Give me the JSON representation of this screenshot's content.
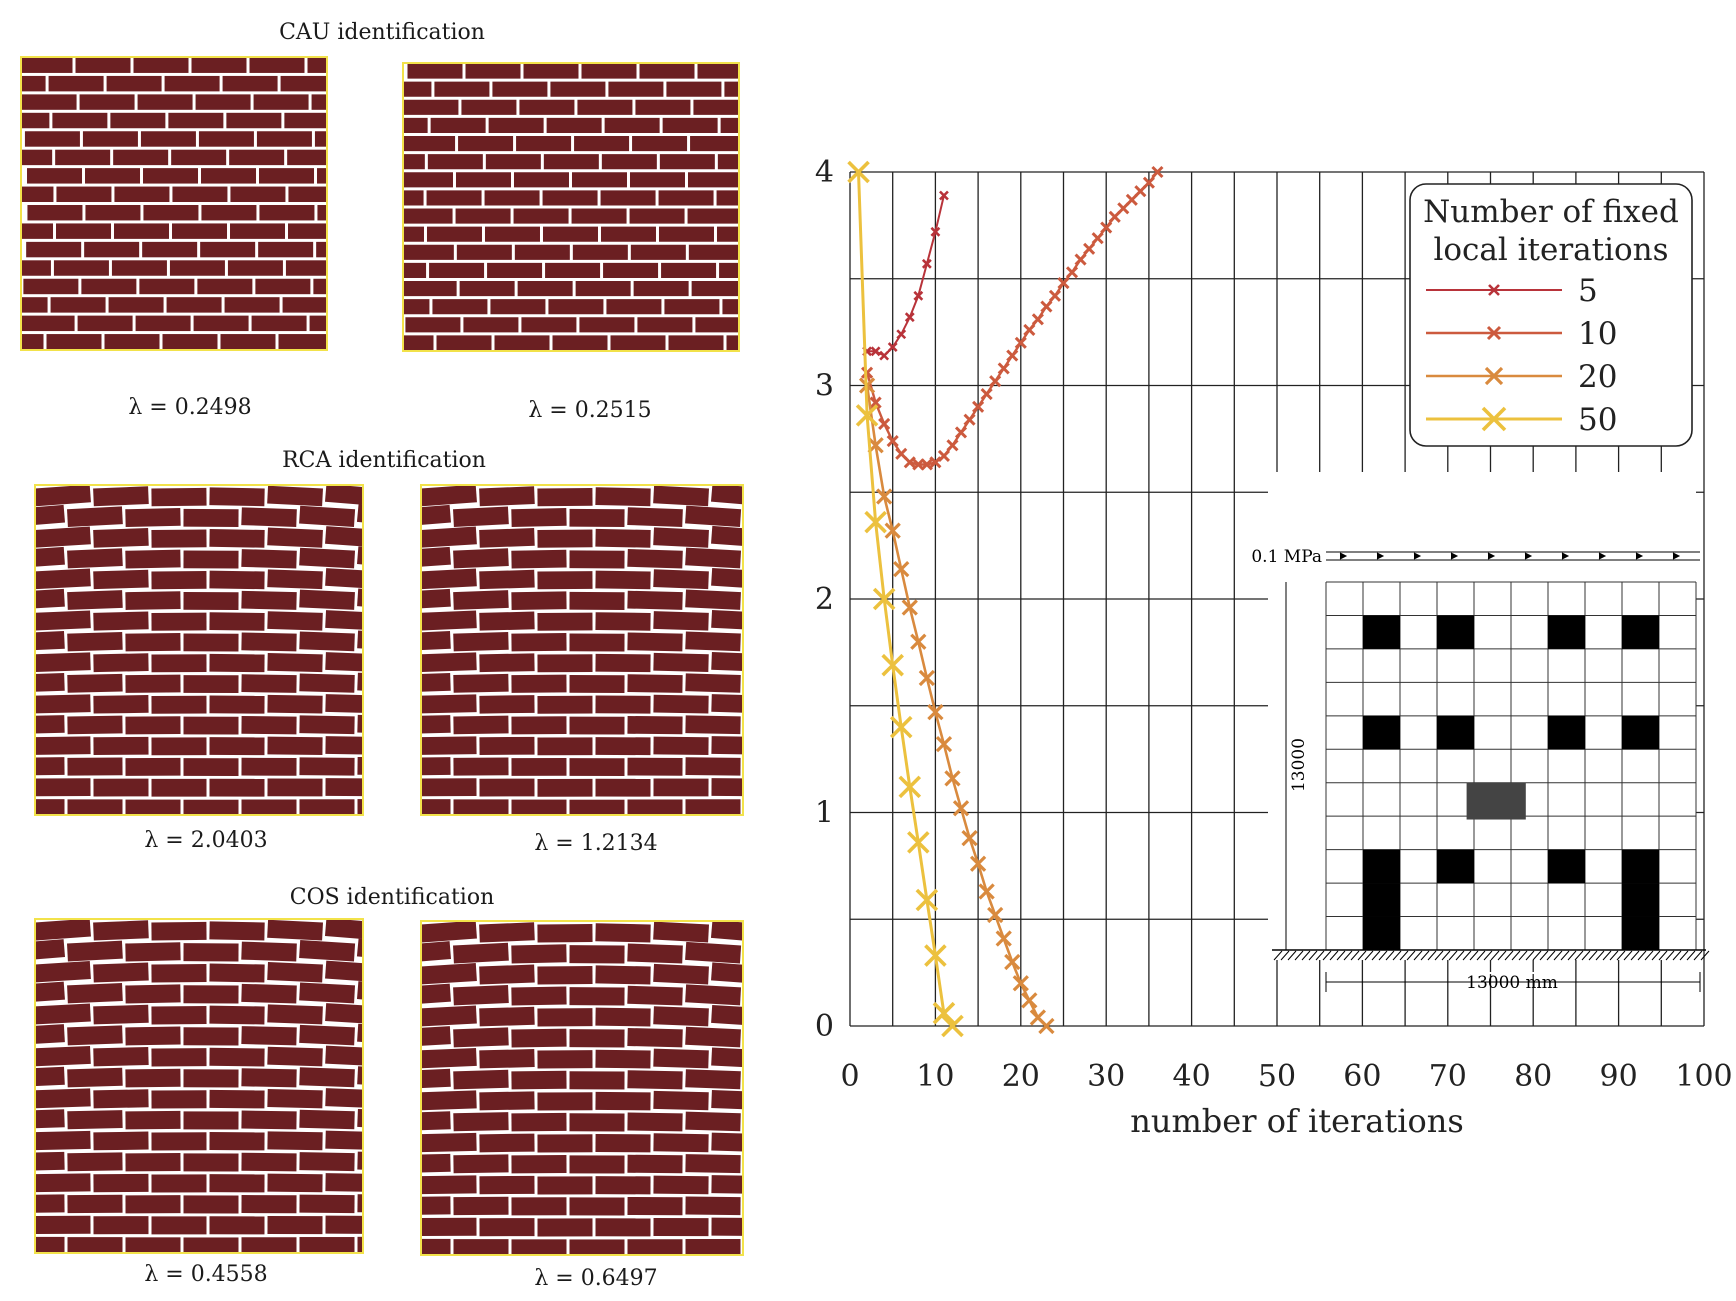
{
  "figure": {
    "panels": [
      {
        "title": "CAU identification",
        "lambdas": [
          "λ = 0.2498",
          "λ = 0.2515"
        ]
      },
      {
        "title": "RCA identification",
        "lambdas": [
          "λ = 2.0403",
          "λ = 1.2134"
        ]
      },
      {
        "title": "COS identification",
        "lambdas": [
          "λ = 0.4558",
          "λ = 0.6497"
        ]
      }
    ],
    "colors": {
      "brick": "#6b1f22",
      "mortar": "#ffffff",
      "outline": "#f2e24a"
    }
  },
  "chart_data": {
    "type": "line",
    "xlabel": "number of iterations",
    "ylabel": "",
    "xlim": [
      0,
      100
    ],
    "ylim": [
      0,
      4
    ],
    "xticks": [
      0,
      10,
      20,
      30,
      40,
      50,
      60,
      70,
      80,
      90,
      100
    ],
    "yticks": [
      0,
      1,
      2,
      3,
      4
    ],
    "grid": true,
    "legend": {
      "title_lines": [
        "Number of fixed",
        "local iterations"
      ],
      "placement": "top-right"
    },
    "series": [
      {
        "name": "5",
        "color": "#b8333a",
        "x": [
          2,
          3,
          4,
          5,
          6,
          7,
          8,
          9,
          10,
          11
        ],
        "y": [
          3.16,
          3.16,
          3.14,
          3.18,
          3.24,
          3.32,
          3.42,
          3.57,
          3.72,
          3.89
        ]
      },
      {
        "name": "10",
        "color": "#cc5a3e",
        "x": [
          2,
          3,
          4,
          5,
          6,
          7,
          8,
          9,
          10,
          11,
          12,
          13,
          14,
          15,
          16,
          17,
          18,
          19,
          20,
          21,
          22,
          23,
          24,
          25,
          26,
          27,
          28,
          29,
          30,
          31,
          32,
          33,
          34,
          35,
          36
        ],
        "y": [
          3.06,
          2.92,
          2.82,
          2.74,
          2.68,
          2.64,
          2.63,
          2.63,
          2.64,
          2.67,
          2.72,
          2.78,
          2.84,
          2.9,
          2.96,
          3.02,
          3.08,
          3.14,
          3.2,
          3.26,
          3.31,
          3.37,
          3.42,
          3.48,
          3.53,
          3.59,
          3.64,
          3.69,
          3.74,
          3.79,
          3.83,
          3.87,
          3.91,
          3.95,
          4.0
        ]
      },
      {
        "name": "20",
        "color": "#d98a3e",
        "x": [
          2,
          3,
          4,
          5,
          6,
          7,
          8,
          9,
          10,
          11,
          12,
          13,
          14,
          15,
          16,
          17,
          18,
          19,
          20,
          21,
          22,
          23
        ],
        "y": [
          3.0,
          2.72,
          2.48,
          2.32,
          2.14,
          1.96,
          1.8,
          1.63,
          1.47,
          1.32,
          1.16,
          1.02,
          0.88,
          0.76,
          0.63,
          0.52,
          0.41,
          0.3,
          0.2,
          0.12,
          0.04,
          0.0
        ]
      },
      {
        "name": "50",
        "color": "#ecc13e",
        "x": [
          1,
          2,
          3,
          4,
          5,
          6,
          7,
          8,
          9,
          10,
          11,
          12
        ],
        "y": [
          4.0,
          2.86,
          2.36,
          2.0,
          1.69,
          1.4,
          1.12,
          0.86,
          0.59,
          0.33,
          0.06,
          0.0
        ]
      }
    ]
  },
  "inset": {
    "load_label": "0.1 MPa",
    "height_label": "13000",
    "width_label": "13000 mm"
  }
}
